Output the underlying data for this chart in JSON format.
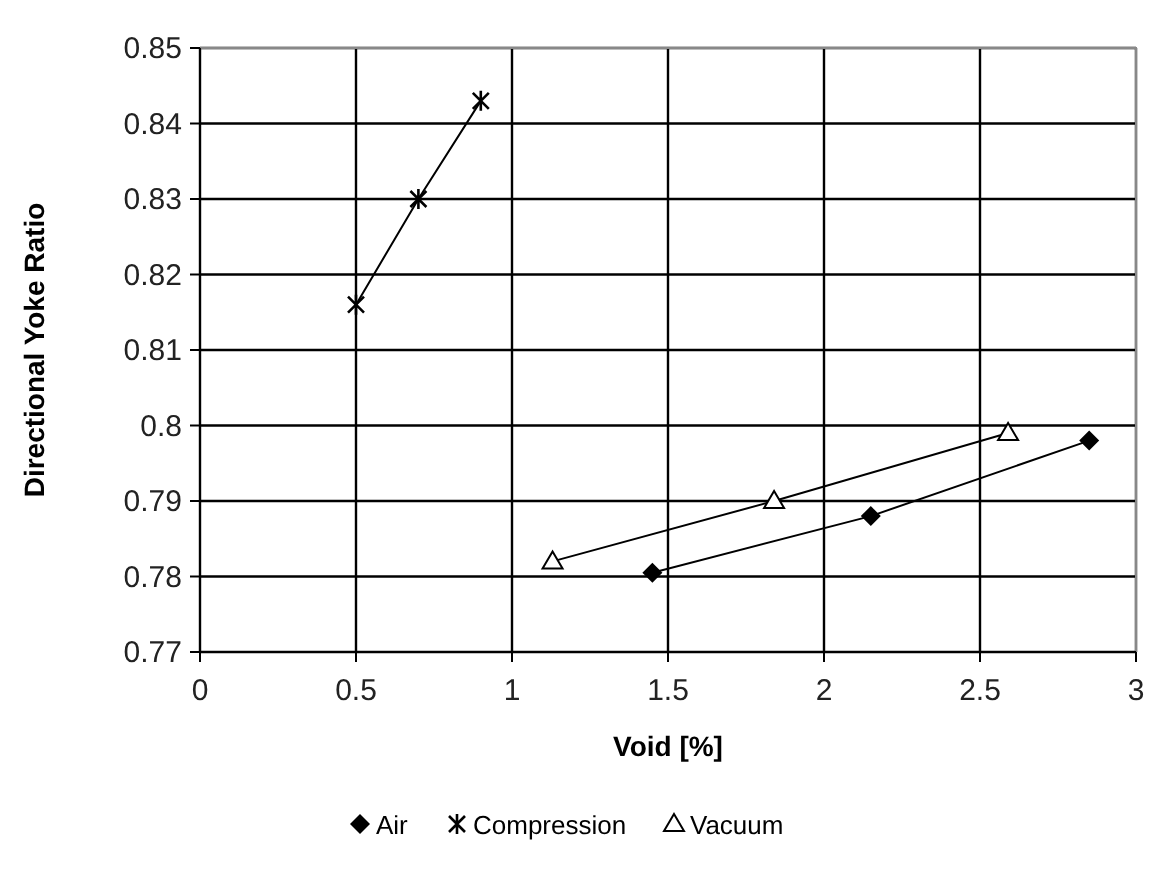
{
  "chart_data": {
    "type": "line",
    "xlabel": "Void [%]",
    "ylabel": "Directional Yoke Ratio",
    "xlim": [
      0,
      3
    ],
    "xticks": [
      0,
      0.5,
      1,
      1.5,
      2,
      2.5,
      3
    ],
    "ylim": [
      0.77,
      0.85
    ],
    "yticks": [
      0.77,
      0.78,
      0.79,
      0.8,
      0.81,
      0.82,
      0.83,
      0.84,
      0.85
    ],
    "grid": true,
    "legend": "bottom",
    "series": [
      {
        "name": "Air",
        "color": "#000000",
        "marker": "diamond",
        "x": [
          1.45,
          2.15,
          2.85
        ],
        "values": [
          0.7805,
          0.788,
          0.798
        ]
      },
      {
        "name": "Compression",
        "color": "#000000",
        "marker": "cross",
        "x": [
          0.5,
          0.7,
          0.9
        ],
        "values": [
          0.816,
          0.83,
          0.843
        ]
      },
      {
        "name": "Vacuum",
        "color": "#000000",
        "marker": "triangle",
        "x": [
          1.13,
          1.84,
          2.59
        ],
        "values": [
          0.782,
          0.79,
          0.799
        ]
      }
    ]
  }
}
